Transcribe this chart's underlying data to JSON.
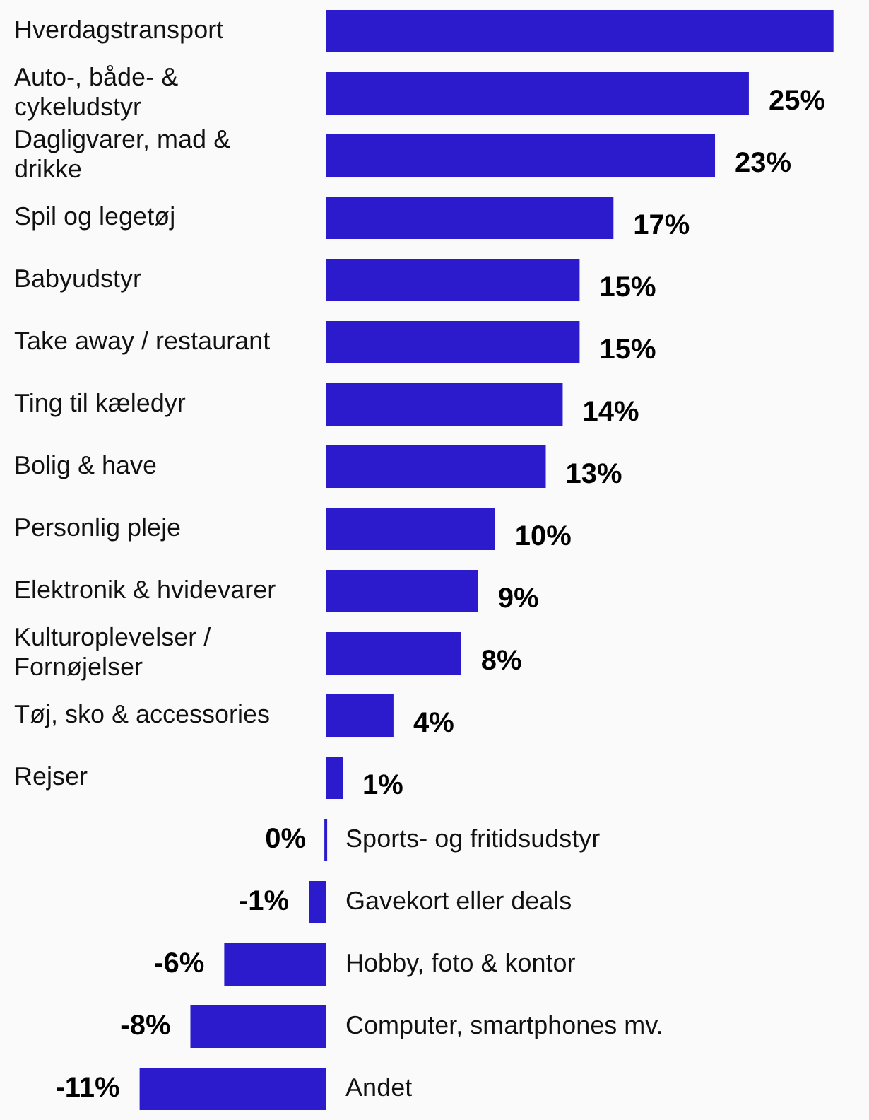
{
  "chart_data": {
    "type": "bar",
    "orientation": "horizontal",
    "color": "#2b1bcc",
    "categories": [
      "Hverdagstransport",
      "Auto-, både- & cykeludstyr",
      "Dagligvarer, mad & drikke",
      "Spil og legetøj",
      "Babyudstyr",
      "Take away / restaurant",
      "Ting til kæledyr",
      "Bolig & have",
      "Personlig pleje",
      "Elektronik & hvidevarer",
      "Kulturoplevelser / Fornøjelser",
      "Tøj, sko & accessories",
      "Rejser",
      "Sports- og fritidsudstyr",
      "Gavekort eller deals",
      "Hobby, foto & kontor",
      "Computer, smartphones mv.",
      "Andet"
    ],
    "values": [
      30,
      25,
      23,
      17,
      15,
      15,
      14,
      13,
      10,
      9,
      8,
      4,
      1,
      0,
      -1,
      -6,
      -8,
      -11
    ],
    "value_labels": [
      null,
      "25%",
      "23%",
      "17%",
      "15%",
      "15%",
      "14%",
      "13%",
      "10%",
      "9%",
      "8%",
      "4%",
      "1%",
      "0%",
      "-1%",
      "-6%",
      "-8%",
      "-11%"
    ],
    "legend": false
  }
}
